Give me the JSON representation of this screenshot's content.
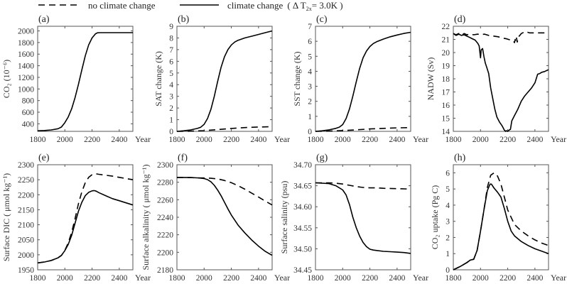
{
  "legend": {
    "dashed_label": "no climate change",
    "solid_label": "climate change",
    "solid_suffix": "( Δ  T",
    "solid_sub": "2x",
    "solid_end": "= 3.0K )"
  },
  "chart_data": [
    {
      "id": "a",
      "type": "line",
      "panel_label": "(a)",
      "ylabel": "CO₂ (10⁻⁶)",
      "xlabel": "Year",
      "xlim": [
        1800,
        2500
      ],
      "ylim": [
        270,
        2080
      ],
      "xticks": [
        1800,
        2000,
        2200,
        2400
      ],
      "yticks": [
        400,
        600,
        800,
        1000,
        1200,
        1400,
        1600,
        1800,
        2000
      ],
      "series": [
        {
          "name": "climate change",
          "style": "solid",
          "x": [
            1800,
            1850,
            1900,
            1950,
            1975,
            2000,
            2025,
            2050,
            2075,
            2100,
            2125,
            2150,
            2175,
            2200,
            2225,
            2240,
            2260,
            2300,
            2400,
            2500
          ],
          "y": [
            280,
            285,
            295,
            315,
            345,
            420,
            520,
            660,
            850,
            1080,
            1330,
            1570,
            1760,
            1880,
            1950,
            1968,
            1970,
            1970,
            1970,
            1970
          ]
        }
      ]
    },
    {
      "id": "b",
      "type": "line",
      "panel_label": "(b)",
      "ylabel": "SAT change (K)",
      "xlabel": "Year",
      "xlim": [
        1800,
        2500
      ],
      "ylim": [
        0,
        9
      ],
      "xticks": [
        1800,
        2000,
        2200,
        2400
      ],
      "yticks": [
        0,
        1,
        2,
        3,
        4,
        5,
        6,
        7,
        8,
        9
      ],
      "series": [
        {
          "name": "no climate change",
          "style": "dashed",
          "x": [
            1800,
            1900,
            2000,
            2100,
            2200,
            2300,
            2400,
            2500
          ],
          "y": [
            0.0,
            0.02,
            0.06,
            0.15,
            0.25,
            0.32,
            0.37,
            0.4
          ]
        },
        {
          "name": "climate change",
          "style": "solid",
          "x": [
            1800,
            1850,
            1900,
            1950,
            1975,
            2000,
            2025,
            2050,
            2075,
            2100,
            2125,
            2150,
            2175,
            2200,
            2225,
            2250,
            2300,
            2350,
            2400,
            2450,
            2500
          ],
          "y": [
            0.0,
            0.05,
            0.12,
            0.25,
            0.35,
            0.6,
            1.1,
            1.9,
            3.0,
            4.3,
            5.5,
            6.4,
            7.0,
            7.4,
            7.65,
            7.8,
            8.0,
            8.15,
            8.3,
            8.45,
            8.6
          ]
        }
      ]
    },
    {
      "id": "c",
      "type": "line",
      "panel_label": "(c)",
      "ylabel": "SST change (K)",
      "xlabel": "Year",
      "xlim": [
        1800,
        2500
      ],
      "ylim": [
        0,
        7
      ],
      "xticks": [
        1800,
        2000,
        2200,
        2400
      ],
      "yticks": [
        0,
        1,
        2,
        3,
        4,
        5,
        6,
        7
      ],
      "series": [
        {
          "name": "no climate change",
          "style": "dashed",
          "x": [
            1800,
            1900,
            2000,
            2100,
            2200,
            2300,
            2400,
            2500
          ],
          "y": [
            0.0,
            0.02,
            0.05,
            0.1,
            0.16,
            0.2,
            0.23,
            0.25
          ]
        },
        {
          "name": "climate change",
          "style": "solid",
          "x": [
            1800,
            1850,
            1900,
            1950,
            1975,
            2000,
            2025,
            2050,
            2075,
            2100,
            2125,
            2150,
            2175,
            2200,
            2225,
            2250,
            2300,
            2350,
            2400,
            2450,
            2500
          ],
          "y": [
            0.0,
            0.04,
            0.1,
            0.2,
            0.28,
            0.45,
            0.85,
            1.5,
            2.35,
            3.3,
            4.2,
            4.9,
            5.35,
            5.65,
            5.85,
            5.97,
            6.15,
            6.3,
            6.42,
            6.52,
            6.6
          ]
        }
      ]
    },
    {
      "id": "d",
      "type": "line",
      "panel_label": "(d)",
      "ylabel": "NADW (Sv)",
      "xlabel": "Year",
      "xlim": [
        1800,
        2500
      ],
      "ylim": [
        14,
        22
      ],
      "xticks": [
        1800,
        2000,
        2200,
        2400
      ],
      "yticks": [
        14,
        15,
        16,
        17,
        18,
        19,
        20,
        21,
        22
      ],
      "series": [
        {
          "name": "no climate change",
          "style": "dashed",
          "x": [
            1800,
            1820,
            1840,
            1860,
            1880,
            1900,
            1920,
            1950,
            1980,
            2000,
            2030,
            2060,
            2100,
            2130,
            2160,
            2190,
            2220,
            2240,
            2250,
            2255,
            2260,
            2265,
            2270,
            2280,
            2300,
            2330,
            2360,
            2400,
            2450,
            2500
          ],
          "y": [
            21.45,
            21.35,
            21.45,
            21.3,
            21.45,
            21.35,
            21.4,
            21.35,
            21.4,
            21.35,
            21.4,
            21.3,
            21.25,
            21.2,
            21.1,
            21.05,
            20.95,
            20.9,
            20.75,
            21.0,
            20.8,
            21.1,
            20.8,
            21.2,
            21.45,
            21.6,
            21.5,
            21.5,
            21.5,
            21.5
          ]
        },
        {
          "name": "climate change",
          "style": "solid",
          "x": [
            1800,
            1820,
            1840,
            1860,
            1880,
            1900,
            1920,
            1940,
            1960,
            1980,
            1990,
            2000,
            2005,
            2015,
            2025,
            2035,
            2045,
            2060,
            2075,
            2090,
            2105,
            2120,
            2140,
            2160,
            2175,
            2185,
            2190,
            2200,
            2210,
            2220,
            2230,
            2250,
            2275,
            2300,
            2325,
            2350,
            2375,
            2400,
            2420,
            2435,
            2450,
            2470,
            2500
          ],
          "y": [
            21.45,
            21.3,
            21.4,
            21.3,
            21.35,
            21.25,
            21.15,
            21.05,
            20.95,
            20.7,
            20.5,
            19.6,
            20.2,
            20.3,
            19.7,
            19.2,
            18.9,
            18.4,
            17.3,
            16.5,
            15.7,
            15.1,
            14.7,
            14.4,
            14.1,
            14.0,
            14.05,
            14.0,
            14.1,
            14.15,
            14.8,
            15.2,
            15.7,
            16.3,
            16.7,
            17.0,
            17.3,
            17.7,
            18.35,
            18.4,
            18.5,
            18.55,
            18.7
          ]
        }
      ]
    },
    {
      "id": "e",
      "type": "line",
      "panel_label": "(e)",
      "ylabel": "Surface DIC ( μmol kg⁻¹)",
      "xlabel": "Year",
      "xlim": [
        1800,
        2500
      ],
      "ylim": [
        1950,
        2300
      ],
      "xticks": [
        1800,
        2000,
        2200,
        2400
      ],
      "yticks": [
        1950,
        2000,
        2050,
        2100,
        2150,
        2200,
        2250,
        2300
      ],
      "series": [
        {
          "name": "no climate change",
          "style": "dashed",
          "x": [
            1800,
            1850,
            1900,
            1950,
            1975,
            2000,
            2025,
            2050,
            2075,
            2100,
            2125,
            2150,
            2175,
            2200,
            2225,
            2250,
            2300,
            2350,
            2400,
            2450,
            2500
          ],
          "y": [
            1973,
            1976,
            1981,
            1990,
            1998,
            2015,
            2040,
            2075,
            2120,
            2170,
            2210,
            2240,
            2258,
            2267,
            2270,
            2268,
            2265,
            2262,
            2258,
            2254,
            2250
          ]
        },
        {
          "name": "climate change",
          "style": "solid",
          "x": [
            1800,
            1850,
            1900,
            1950,
            1975,
            2000,
            2025,
            2050,
            2075,
            2100,
            2125,
            2150,
            2175,
            2200,
            2215,
            2230,
            2250,
            2300,
            2350,
            2400,
            2450,
            2500
          ],
          "y": [
            1973,
            1976,
            1981,
            1990,
            1998,
            2014,
            2035,
            2065,
            2105,
            2145,
            2175,
            2197,
            2208,
            2213,
            2214,
            2212,
            2207,
            2197,
            2187,
            2180,
            2173,
            2166
          ]
        }
      ]
    },
    {
      "id": "f",
      "type": "line",
      "panel_label": "(f)",
      "ylabel": "Surface alkalinity ( μmol kg⁻¹)",
      "xlabel": "Year",
      "xlim": [
        1800,
        2500
      ],
      "ylim": [
        2180,
        2300
      ],
      "xticks": [
        1800,
        2000,
        2200,
        2400
      ],
      "yticks": [
        2180,
        2200,
        2220,
        2240,
        2260,
        2280,
        2300
      ],
      "series": [
        {
          "name": "no climate change",
          "style": "dashed",
          "x": [
            1800,
            1900,
            1950,
            2000,
            2050,
            2100,
            2150,
            2200,
            2250,
            2300,
            2350,
            2400,
            2450,
            2500
          ],
          "y": [
            2285.5,
            2285.3,
            2285.0,
            2284.8,
            2284.5,
            2283.8,
            2282.0,
            2279.5,
            2276.0,
            2272.0,
            2267.5,
            2263.0,
            2258.5,
            2254.0
          ]
        },
        {
          "name": "climate change",
          "style": "solid",
          "x": [
            1800,
            1900,
            1950,
            2000,
            2025,
            2050,
            2075,
            2100,
            2125,
            2150,
            2175,
            2200,
            2250,
            2300,
            2350,
            2400,
            2450,
            2500
          ],
          "y": [
            2285.5,
            2285.3,
            2285.0,
            2284.2,
            2283.0,
            2280.5,
            2276.5,
            2271.0,
            2264.5,
            2257.0,
            2249.5,
            2242.5,
            2231.0,
            2222.0,
            2214.0,
            2207.0,
            2201.0,
            2196.5
          ]
        }
      ]
    },
    {
      "id": "g",
      "type": "line",
      "panel_label": "(g)",
      "ylabel": "Surface salinity (psu)",
      "xlabel": "Year",
      "xlim": [
        1800,
        2500
      ],
      "ylim": [
        34.45,
        34.7
      ],
      "xticks": [
        1800,
        2000,
        2200,
        2400
      ],
      "yticks": [
        34.45,
        34.5,
        34.55,
        34.6,
        34.65,
        34.7
      ],
      "ytick_labels": [
        "34.45",
        "34.50",
        "34.55",
        "34.60",
        "34.65",
        "34.70"
      ],
      "series": [
        {
          "name": "no climate change",
          "style": "dashed",
          "x": [
            1800,
            1900,
            1950,
            2000,
            2050,
            2100,
            2150,
            2200,
            2250,
            2300,
            2400,
            2500
          ],
          "y": [
            34.657,
            34.657,
            34.656,
            34.654,
            34.651,
            34.648,
            34.646,
            34.645,
            34.645,
            34.644,
            34.643,
            34.642
          ]
        },
        {
          "name": "climate change",
          "style": "solid",
          "x": [
            1800,
            1900,
            1950,
            2000,
            2025,
            2050,
            2075,
            2100,
            2125,
            2150,
            2175,
            2200,
            2225,
            2250,
            2300,
            2350,
            2400,
            2450,
            2500
          ],
          "y": [
            34.657,
            34.655,
            34.65,
            34.64,
            34.628,
            34.605,
            34.575,
            34.55,
            34.53,
            34.515,
            34.505,
            34.499,
            34.497,
            34.496,
            34.494,
            34.493,
            34.492,
            34.491,
            34.489
          ]
        }
      ]
    },
    {
      "id": "h",
      "type": "line",
      "panel_label": "(h)",
      "ylabel": "CO₂  uptake (Pg C)",
      "xlabel": "Year",
      "xlim": [
        1800,
        2500
      ],
      "ylim": [
        0,
        6.5
      ],
      "xticks": [
        1800,
        2000,
        2200,
        2400
      ],
      "yticks": [
        0,
        1,
        2,
        3,
        4,
        5,
        6
      ],
      "series": [
        {
          "name": "no climate change",
          "style": "dashed",
          "x": [
            1800,
            1850,
            1900,
            1925,
            1950,
            1975,
            2000,
            2025,
            2050,
            2075,
            2100,
            2125,
            2150,
            2175,
            2200,
            2250,
            2300,
            2350,
            2400,
            2450,
            2500
          ],
          "y": [
            0.0,
            0.2,
            0.45,
            0.6,
            0.65,
            1.2,
            2.4,
            3.7,
            5.1,
            5.85,
            6.0,
            5.8,
            5.3,
            4.5,
            3.7,
            2.8,
            2.4,
            2.1,
            1.85,
            1.65,
            1.5
          ]
        },
        {
          "name": "climate change",
          "style": "solid",
          "x": [
            1800,
            1850,
            1900,
            1925,
            1950,
            1975,
            2000,
            2025,
            2050,
            2070,
            2080,
            2100,
            2125,
            2150,
            2175,
            2200,
            2225,
            2250,
            2300,
            2350,
            2400,
            2450,
            2500
          ],
          "y": [
            0.0,
            0.2,
            0.45,
            0.6,
            0.65,
            1.2,
            2.4,
            3.7,
            4.9,
            5.3,
            5.3,
            5.05,
            4.8,
            4.5,
            3.8,
            3.0,
            2.4,
            2.1,
            1.75,
            1.5,
            1.3,
            1.15,
            1.0
          ]
        }
      ]
    }
  ]
}
